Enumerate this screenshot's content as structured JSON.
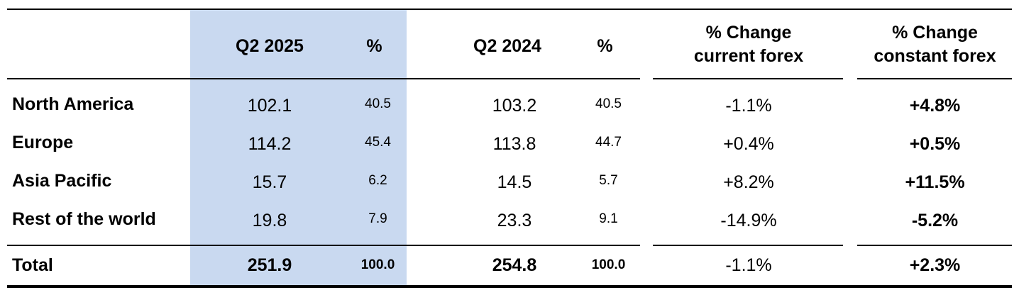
{
  "table": {
    "headers": {
      "q2_2025": "Q2 2025",
      "pct_2025": "%",
      "q2_2024": "Q2 2024",
      "pct_2024": "%",
      "change_current": "% Change current forex",
      "change_constant": "% Change constant forex"
    },
    "rows": [
      {
        "label": "North America",
        "q2_2025": "102.1",
        "pct_2025": "40.5",
        "q2_2024": "103.2",
        "pct_2024": "40.5",
        "change_current": "-1.1%",
        "change_constant": "+4.8%"
      },
      {
        "label": "Europe",
        "q2_2025": "114.2",
        "pct_2025": "45.4",
        "q2_2024": "113.8",
        "pct_2024": "44.7",
        "change_current": "+0.4%",
        "change_constant": "+0.5%"
      },
      {
        "label": "Asia Pacific",
        "q2_2025": "15.7",
        "pct_2025": "6.2",
        "q2_2024": "14.5",
        "pct_2024": "5.7",
        "change_current": "+8.2%",
        "change_constant": "+11.5%"
      },
      {
        "label": "Rest of the world",
        "q2_2025": "19.8",
        "pct_2025": "7.9",
        "q2_2024": "23.3",
        "pct_2024": "9.1",
        "change_current": "-14.9%",
        "change_constant": "-5.2%"
      }
    ],
    "total": {
      "label": "Total",
      "q2_2025": "251.9",
      "pct_2025": "100.0",
      "q2_2024": "254.8",
      "pct_2024": "100.0",
      "change_current": "-1.1%",
      "change_constant": "+2.3%"
    },
    "highlight_color": "#c9d9f0"
  }
}
